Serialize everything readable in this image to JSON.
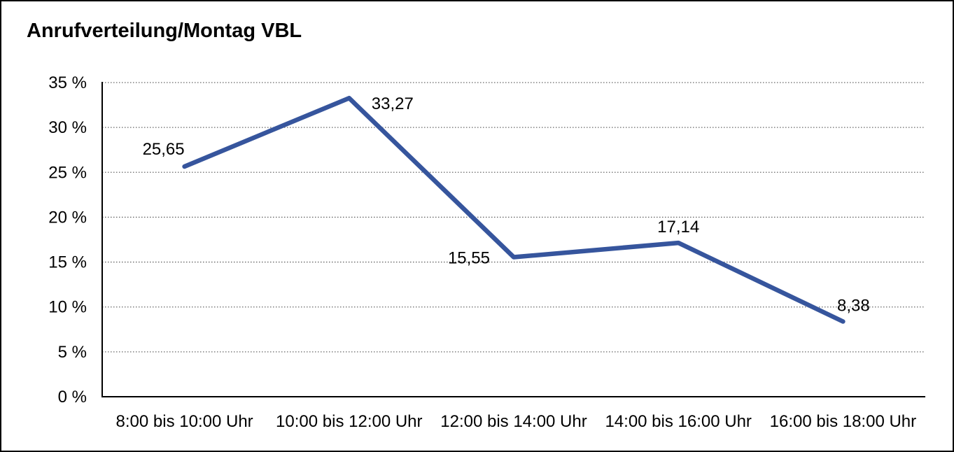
{
  "chart_data": {
    "type": "line",
    "title": "Anrufverteilung/Montag VBL",
    "categories": [
      "8:00 bis 10:00 Uhr",
      "10:00 bis 12:00 Uhr",
      "12:00 bis 14:00 Uhr",
      "14:00 bis 16:00 Uhr",
      "16:00 bis 18:00 Uhr"
    ],
    "values": [
      25.65,
      33.27,
      15.55,
      17.14,
      8.38
    ],
    "value_labels": [
      "25,65",
      "33,27",
      "15,55",
      "17,14",
      "8,38"
    ],
    "label_placement": [
      "above-left",
      "right",
      "left",
      "above",
      "above-right"
    ],
    "xlabel": "",
    "ylabel": "",
    "ylim": [
      0,
      35
    ],
    "yticks": [
      {
        "v": 0,
        "label": "0 %"
      },
      {
        "v": 5,
        "label": "5 %"
      },
      {
        "v": 10,
        "label": "10 %"
      },
      {
        "v": 15,
        "label": "15 %"
      },
      {
        "v": 20,
        "label": "20 %"
      },
      {
        "v": 25,
        "label": "25 %"
      },
      {
        "v": 30,
        "label": "30 %"
      },
      {
        "v": 35,
        "label": "35 %"
      }
    ],
    "grid": "horizontal-dotted",
    "legend": "none",
    "line_color": "#36559D",
    "axis_color": "#000000",
    "gridline_color": "#666666",
    "text_color": "#000000"
  }
}
